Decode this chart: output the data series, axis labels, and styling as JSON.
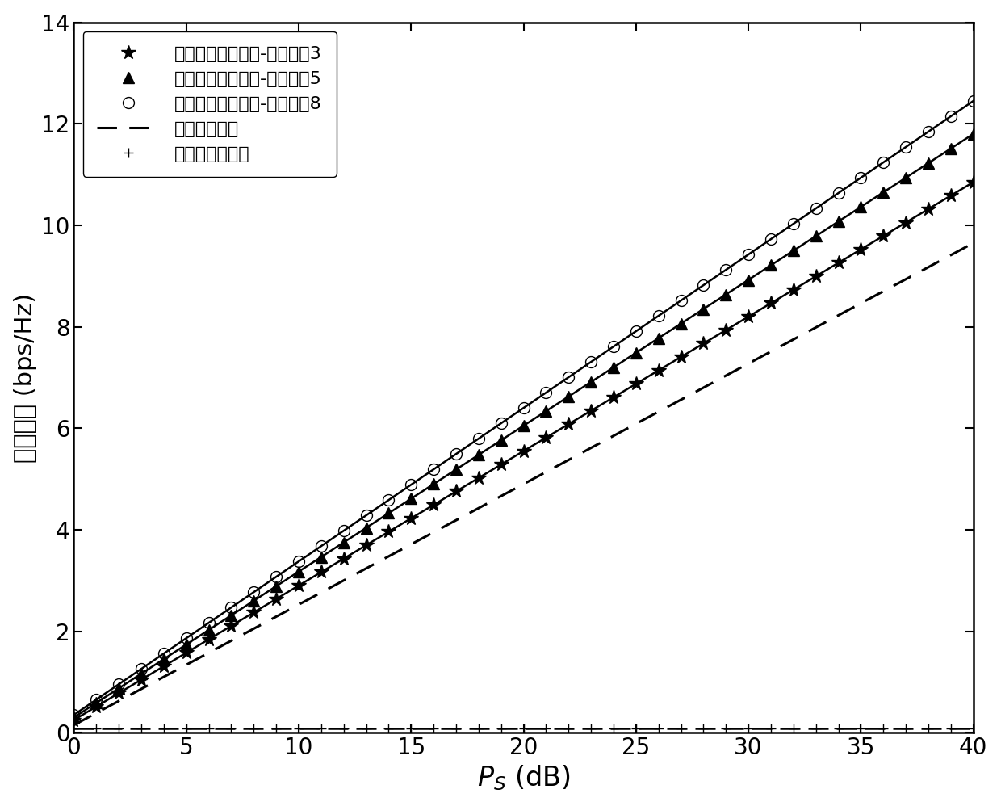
{
  "xlabel": "P$_S$ (dB)",
  "ylabel_cn": "安全容量 (bps/Hz)",
  "xlim": [
    0,
    40
  ],
  "ylim": [
    0,
    14
  ],
  "xticks": [
    0,
    5,
    10,
    15,
    20,
    25,
    30,
    35,
    40
  ],
  "yticks": [
    0,
    2,
    4,
    6,
    8,
    10,
    12,
    14
  ],
  "legend_labels": [
    "所提天线选择方案-天线数为3",
    "所提天线选择方案-天线数为5",
    "所提天线选择方案-天线数为8",
    "随机天线选择",
    "中继半双工方案"
  ],
  "background_color": "#ffffff",
  "line_color": "#000000",
  "y_n3_at40": 10.6,
  "y_n5_at40": 11.5,
  "y_n8_at40": 12.1,
  "y_rand_at40": 9.5,
  "y_hd_flat": 0.08
}
